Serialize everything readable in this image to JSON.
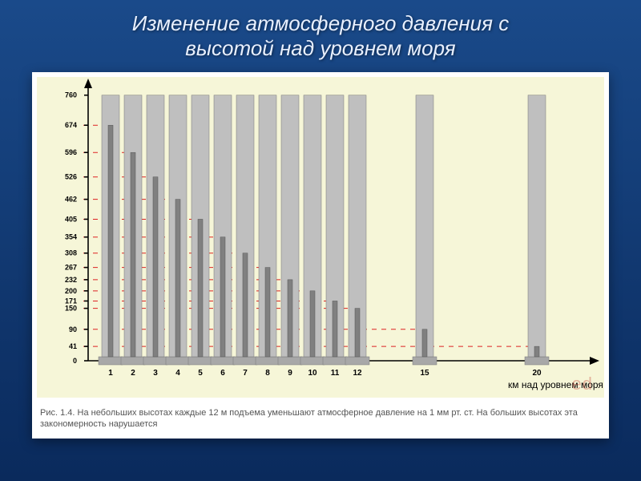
{
  "title_line1": "Изменение атмосферного давления с",
  "title_line2": "высотой над уровнем моря",
  "caption": "Рис. 1.4. На небольших высотах каждые 12 м подъема уменьшают атмосферное давление на 1 мм рт. ст. На больших высотах эта закономерность нарушается",
  "xlabel": "км над уровнем моря",
  "watermark": "ed",
  "chart": {
    "type": "bar",
    "background_color": "#f6f6d8",
    "ylim": [
      0,
      780
    ],
    "y_ticks": [
      0,
      41,
      90,
      150,
      171,
      200,
      232,
      267,
      308,
      354,
      405,
      462,
      526,
      596,
      674,
      760
    ],
    "outer_bar_value": 760,
    "x_positions": [
      1,
      2,
      3,
      4,
      5,
      6,
      7,
      8,
      9,
      10,
      11,
      12,
      15,
      20
    ],
    "x_labels": [
      "1",
      "2",
      "3",
      "4",
      "5",
      "6",
      "7",
      "8",
      "9",
      "10",
      "11",
      "12",
      "15",
      "20"
    ],
    "inner_values": [
      674,
      596,
      526,
      462,
      405,
      354,
      308,
      267,
      232,
      200,
      171,
      150,
      90,
      41
    ],
    "grid_color": "#d22",
    "outer_bar_color": "#bfbfbf",
    "inner_bar_color": "#808080",
    "axis_color": "#000000"
  }
}
